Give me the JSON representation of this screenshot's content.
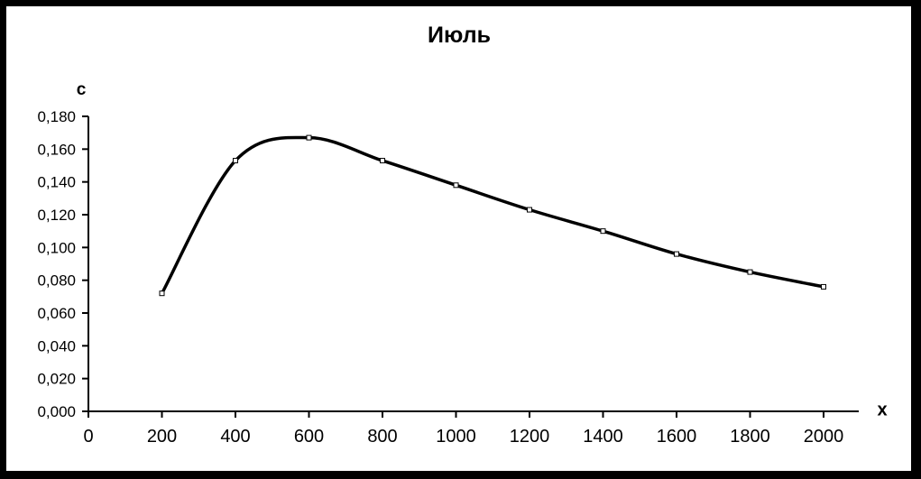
{
  "frame": {
    "border_color": "#000000",
    "background": "#ffffff"
  },
  "chart_data": {
    "type": "line",
    "title": "Июль",
    "xlabel": "x",
    "ylabel": "c",
    "x": [
      200,
      400,
      600,
      800,
      1000,
      1200,
      1400,
      1600,
      1800,
      2000
    ],
    "values": [
      0.072,
      0.153,
      0.167,
      0.153,
      0.138,
      0.123,
      0.11,
      0.096,
      0.085,
      0.076
    ],
    "xlim": [
      0,
      2000
    ],
    "ylim": [
      0,
      0.18
    ],
    "x_tick_step": 200,
    "y_tick_step": 0.02,
    "x_tick_labels": [
      "0",
      "200",
      "400",
      "600",
      "800",
      "1000",
      "1200",
      "1400",
      "1600",
      "1800",
      "2000"
    ],
    "y_tick_labels": [
      "0,000",
      "0,020",
      "0,040",
      "0,060",
      "0,080",
      "0,100",
      "0,120",
      "0,140",
      "0,160",
      "0,180"
    ],
    "decimal_separator": ",",
    "grid": false,
    "legend": "none",
    "line": {
      "color": "#000000",
      "smooth": true,
      "marker": "open-square",
      "marker_fill": "#ffffff"
    }
  }
}
